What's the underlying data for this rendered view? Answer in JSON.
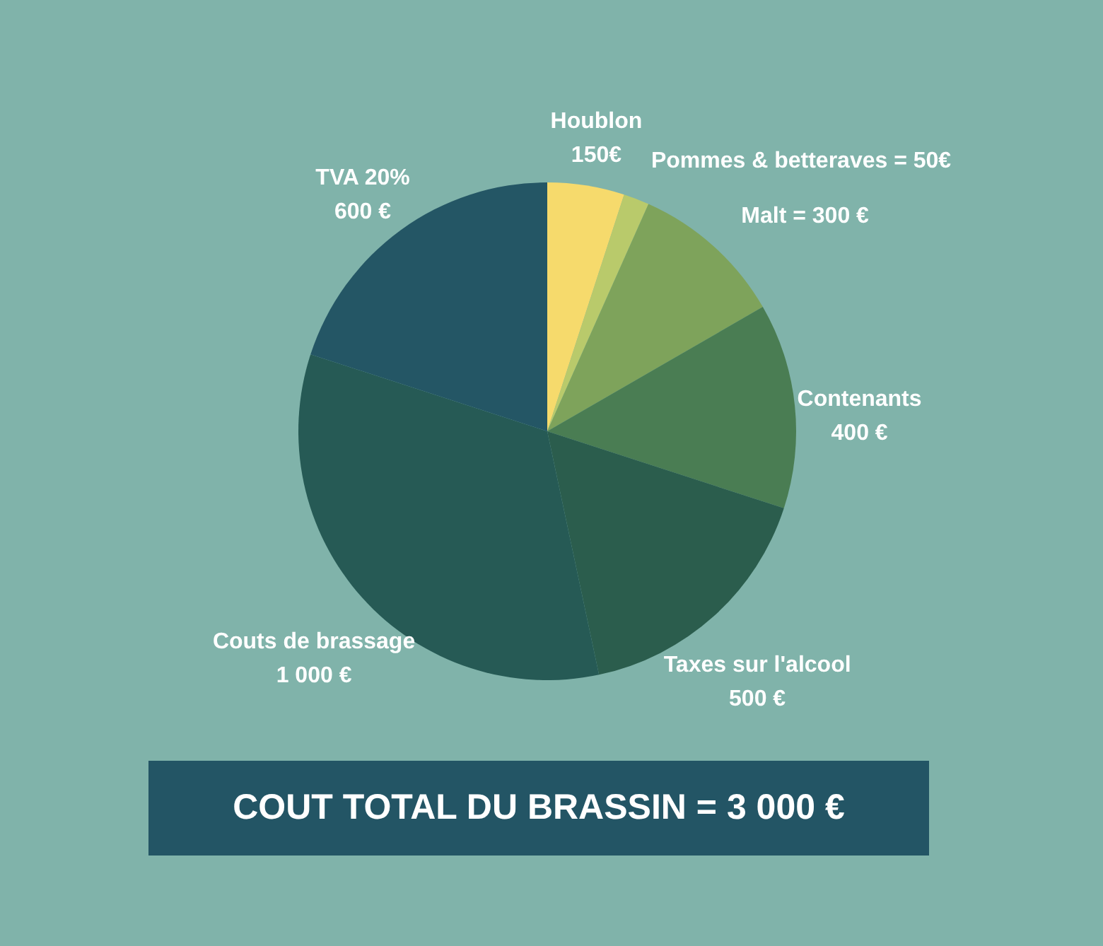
{
  "chart_data": {
    "type": "pie",
    "title": "COUT TOTAL DU BRASSIN = 3 000 €",
    "categories": [
      "Houblon",
      "Pommes & betteraves =",
      "Malt =",
      "Contenants",
      "Taxes sur l'alcool",
      "Couts de brassage",
      "TVA 20%"
    ],
    "values": [
      150,
      50,
      300,
      400,
      500,
      1000,
      600
    ],
    "value_labels": [
      "150€",
      "50€",
      "300 €",
      "400 €",
      "500 €",
      "1 000 €",
      "600 €"
    ],
    "colors": [
      "#f6da6c",
      "#b9ca6b",
      "#7ea35b",
      "#4a7d53",
      "#2b5d4d",
      "#265a55",
      "#245665"
    ]
  }
}
